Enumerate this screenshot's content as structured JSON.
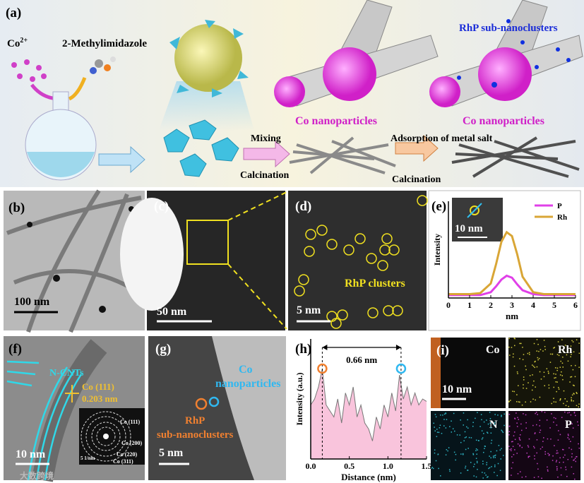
{
  "panels": {
    "a": {
      "label": "(a)",
      "ion": {
        "base": "Co",
        "charge": "2+"
      },
      "ligand": "2-Methylimidazole",
      "rhp_label": "RhP sub-nanoclusters",
      "co_label_1": "Co nanoparticles",
      "co_label_2": "Co nanoparticles",
      "step_1_top": "Mixing",
      "step_1_bottom": "Calcination",
      "step_2_top": "Adsorption of metal salt",
      "step_2_bottom": "Calcination"
    },
    "b": {
      "label": "(b)",
      "scale": "100 nm"
    },
    "c": {
      "label": "(c)",
      "scale": "50 nm"
    },
    "d": {
      "label": "(d)",
      "scale": "5 nm",
      "annotation": "RhP clusters"
    },
    "e": {
      "label": "(e)",
      "inset_scale": "10 nm"
    },
    "f": {
      "label": "(f)",
      "tubes": "N-CNTs",
      "plane": "Co (111)",
      "spacing": "0.203 nm",
      "scale": "10 nm",
      "saed": [
        "Co (111)",
        "Co (200)",
        "Co (220)",
        "Co (311)"
      ],
      "saed_scale": "5 1/nm"
    },
    "g": {
      "label": "(g)",
      "co_line_1": "Co",
      "co_line_2": "nanoparticles",
      "rhp_line_1": "RhP",
      "rhp_line_2": "sub-nanoclusters",
      "scale": "5 nm"
    },
    "h": {
      "label": "(h)"
    },
    "i": {
      "label": "(i)",
      "maps": [
        "Co",
        "Rh",
        "N",
        "P"
      ],
      "scale": "10 nm"
    }
  },
  "watermark": "大数跨境",
  "chart_data": [
    {
      "type": "line",
      "x_label": "nm",
      "y_label": "Intensity",
      "x": [
        0,
        0.5,
        1,
        1.5,
        2,
        2.25,
        2.5,
        2.75,
        3,
        3.25,
        3.5,
        4,
        4.5,
        5,
        5.5,
        6
      ],
      "series": [
        {
          "name": "P",
          "color": "#e040e8",
          "values": [
            0.03,
            0.03,
            0.03,
            0.03,
            0.06,
            0.12,
            0.19,
            0.23,
            0.21,
            0.14,
            0.08,
            0.04,
            0.03,
            0.03,
            0.03,
            0.03
          ]
        },
        {
          "name": "Rh",
          "color": "#d9a636",
          "values": [
            0.04,
            0.04,
            0.04,
            0.05,
            0.15,
            0.35,
            0.58,
            0.68,
            0.64,
            0.45,
            0.22,
            0.06,
            0.04,
            0.04,
            0.04,
            0.04
          ]
        }
      ],
      "xlim": [
        0,
        6
      ],
      "xticks": [
        0,
        1,
        2,
        3,
        4,
        5,
        6
      ],
      "ylim": [
        0,
        1
      ],
      "legend": "upper right"
    },
    {
      "type": "area",
      "x_label": "Distance (nm)",
      "y_label": "Intensity (a.u.)",
      "annotation": "0.66 nm",
      "color": "#f9c4dc",
      "x": [
        0,
        0.05,
        0.1,
        0.15,
        0.2,
        0.25,
        0.3,
        0.35,
        0.4,
        0.45,
        0.5,
        0.55,
        0.6,
        0.65,
        0.7,
        0.75,
        0.8,
        0.85,
        0.9,
        0.95,
        1,
        1.05,
        1.1,
        1.15,
        1.2,
        1.25,
        1.3,
        1.35,
        1.4,
        1.45,
        1.5
      ],
      "values": [
        0.45,
        0.5,
        0.6,
        0.75,
        0.45,
        0.4,
        0.35,
        0.5,
        0.3,
        0.55,
        0.45,
        0.6,
        0.35,
        0.45,
        0.3,
        0.25,
        0.15,
        0.35,
        0.25,
        0.45,
        0.35,
        0.55,
        0.4,
        0.7,
        0.5,
        0.6,
        0.45,
        0.55,
        0.45,
        0.5,
        0.48
      ],
      "xlim": [
        0,
        1.5
      ],
      "xticks": [
        {
          "value": 0,
          "label": "0.0"
        },
        0.5,
        {
          "value": 1,
          "label": "1.0"
        },
        1.5
      ],
      "ylim": [
        0,
        1
      ]
    }
  ]
}
